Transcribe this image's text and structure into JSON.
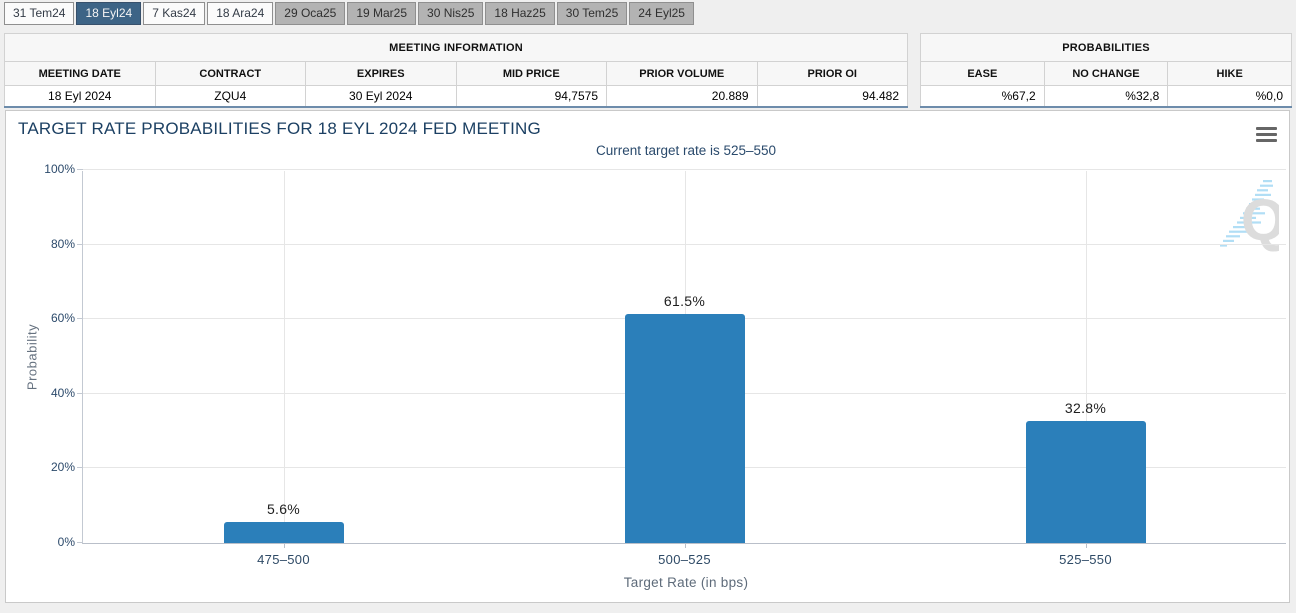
{
  "tabs": [
    {
      "label": "31 Tem24",
      "state": "normal"
    },
    {
      "label": "18 Eyl24",
      "state": "selected"
    },
    {
      "label": "7 Kas24",
      "state": "normal"
    },
    {
      "label": "18 Ara24",
      "state": "normal"
    },
    {
      "label": "29 Oca25",
      "state": "disabled"
    },
    {
      "label": "19 Mar25",
      "state": "disabled"
    },
    {
      "label": "30 Nis25",
      "state": "disabled"
    },
    {
      "label": "18 Haz25",
      "state": "disabled"
    },
    {
      "label": "30 Tem25",
      "state": "disabled"
    },
    {
      "label": "24 Eyl25",
      "state": "disabled"
    }
  ],
  "meeting_information": {
    "title": "MEETING INFORMATION",
    "columns": [
      "MEETING DATE",
      "CONTRACT",
      "EXPIRES",
      "MID PRICE",
      "PRIOR VOLUME",
      "PRIOR OI"
    ],
    "values": [
      "18 Eyl 2024",
      "ZQU4",
      "30 Eyl 2024",
      "94,7575",
      "20.889",
      "94.482"
    ]
  },
  "probabilities": {
    "title": "PROBABILITIES",
    "columns": [
      "EASE",
      "NO CHANGE",
      "HIKE"
    ],
    "values": [
      "%67,2",
      "%32,8",
      "%0,0"
    ]
  },
  "chart": {
    "title": "TARGET RATE PROBABILITIES FOR 18 EYL 2024 FED MEETING",
    "subtitle": "Current target rate is 525–550",
    "menu_icon": "hamburger-icon",
    "watermark_letter": "Q"
  },
  "chart_data": {
    "type": "bar",
    "title": "TARGET RATE PROBABILITIES FOR 18 EYL 2024 FED MEETING",
    "subtitle": "Current target rate is 525–550",
    "categories": [
      "475–500",
      "500–525",
      "525–550"
    ],
    "values": [
      5.6,
      61.5,
      32.8
    ],
    "data_labels": [
      "5.6%",
      "61.5%",
      "32.8%"
    ],
    "xlabel": "Target Rate (in bps)",
    "ylabel": "Probability",
    "ylim": [
      0,
      100
    ],
    "yticks": [
      0,
      20,
      40,
      60,
      80,
      100
    ],
    "ytick_suffix": "%",
    "grid": true,
    "legend": "none",
    "bar_color": "#2b7fba"
  },
  "colors": {
    "bar": "#2b7fba",
    "selected_tab": "#3d6486",
    "table_bottom_border": "#6d8cab",
    "title_text": "#1c4063"
  }
}
